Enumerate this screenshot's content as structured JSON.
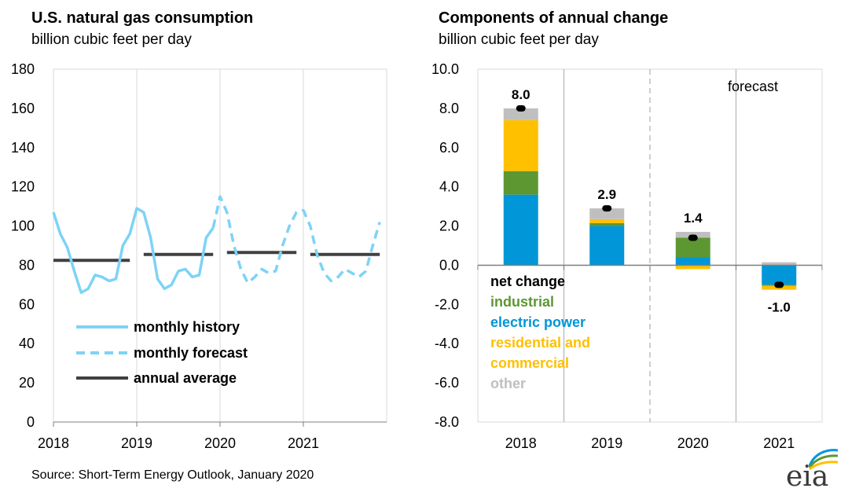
{
  "source": "Source: Short-Term Energy Outlook, January 2020",
  "logo_text": "eia",
  "chart_data": [
    {
      "type": "line",
      "title": "U.S. natural gas consumption",
      "subtitle": "billion cubic feet per day",
      "xlabel": "",
      "ylabel": "",
      "ylim": [
        0,
        180
      ],
      "yticks": [
        "0",
        "20",
        "40",
        "60",
        "80",
        "100",
        "120",
        "140",
        "160",
        "180"
      ],
      "xticks": [
        "2018",
        "2019",
        "2020",
        "2021"
      ],
      "series": [
        {
          "name": "monthly history",
          "color": "#7dd3f7",
          "style": "solid",
          "x": [
            2018.0,
            2018.083,
            2018.167,
            2018.25,
            2018.333,
            2018.417,
            2018.5,
            2018.583,
            2018.667,
            2018.75,
            2018.833,
            2018.917,
            2019.0,
            2019.083,
            2019.167,
            2019.25,
            2019.333,
            2019.417,
            2019.5,
            2019.583,
            2019.667,
            2019.75,
            2019.833,
            2019.917
          ],
          "values": [
            107,
            96,
            89,
            77,
            66,
            68,
            75,
            74,
            72,
            73,
            90,
            96,
            109,
            107,
            94,
            73,
            68,
            70,
            77,
            78,
            74,
            75,
            94,
            99
          ]
        },
        {
          "name": "monthly forecast",
          "color": "#7dd3f7",
          "style": "dashed",
          "x": [
            2019.917,
            2020.0,
            2020.083,
            2020.167,
            2020.25,
            2020.333,
            2020.417,
            2020.5,
            2020.583,
            2020.667,
            2020.75,
            2020.833,
            2020.917,
            2021.0,
            2021.083,
            2021.167,
            2021.25,
            2021.333,
            2021.417,
            2021.5,
            2021.583,
            2021.667,
            2021.75,
            2021.833,
            2021.917
          ],
          "values": [
            99,
            115,
            107,
            90,
            78,
            71,
            74,
            78,
            76,
            77,
            90,
            100,
            107,
            108,
            100,
            85,
            76,
            72,
            74,
            78,
            76,
            74,
            77,
            90,
            102
          ]
        },
        {
          "name": "annual average",
          "color": "#404040",
          "style": "segments",
          "segments": [
            {
              "x0": 2018.0,
              "x1": 2018.917,
              "value": 82.5
            },
            {
              "x0": 2019.083,
              "x1": 2019.917,
              "value": 85.5
            },
            {
              "x0": 2020.083,
              "x1": 2020.917,
              "value": 86.5
            },
            {
              "x0": 2021.083,
              "x1": 2021.917,
              "value": 85.5
            }
          ]
        }
      ],
      "legend": [
        "monthly history",
        "monthly forecast",
        "annual average"
      ],
      "legend_position": "bottom-left"
    },
    {
      "type": "bar",
      "stacked": true,
      "title": "Components of annual change",
      "subtitle": "billion cubic feet per day",
      "ylim": [
        -8.0,
        10.0
      ],
      "yticks": [
        "-8.0",
        "-6.0",
        "-4.0",
        "-2.0",
        "0.0",
        "2.0",
        "4.0",
        "6.0",
        "8.0",
        "10.0"
      ],
      "categories": [
        "2018",
        "2019",
        "2020",
        "2021"
      ],
      "series": [
        {
          "name": "electric power",
          "color": "#0096d7",
          "values": [
            3.6,
            2.0,
            0.4,
            -1.0
          ]
        },
        {
          "name": "industrial",
          "color": "#5d9732",
          "values": [
            1.2,
            0.15,
            1.0,
            -0.05
          ]
        },
        {
          "name": "residential and commercial",
          "color": "#ffc000",
          "values": [
            2.6,
            0.2,
            -0.2,
            -0.2
          ]
        },
        {
          "name": "other",
          "color": "#bfbfbf",
          "values": [
            0.6,
            0.55,
            0.3,
            0.15
          ]
        }
      ],
      "net_change": {
        "name": "net change",
        "values": [
          8.0,
          2.9,
          1.4,
          -1.0
        ],
        "labels": [
          "8.0",
          "2.9",
          "1.4",
          "-1.0"
        ]
      },
      "legend": [
        {
          "label": "net change",
          "color": "#000000"
        },
        {
          "label": "industrial",
          "color": "#5d9732"
        },
        {
          "label": "electric power",
          "color": "#0096d7"
        },
        {
          "label": "residential and",
          "color": "#ffc000"
        },
        {
          "label": "commercial",
          "color": "#ffc000"
        },
        {
          "label": "other",
          "color": "#bfbfbf"
        }
      ],
      "annotation": "forecast",
      "forecast_starts_before": "2020"
    }
  ]
}
